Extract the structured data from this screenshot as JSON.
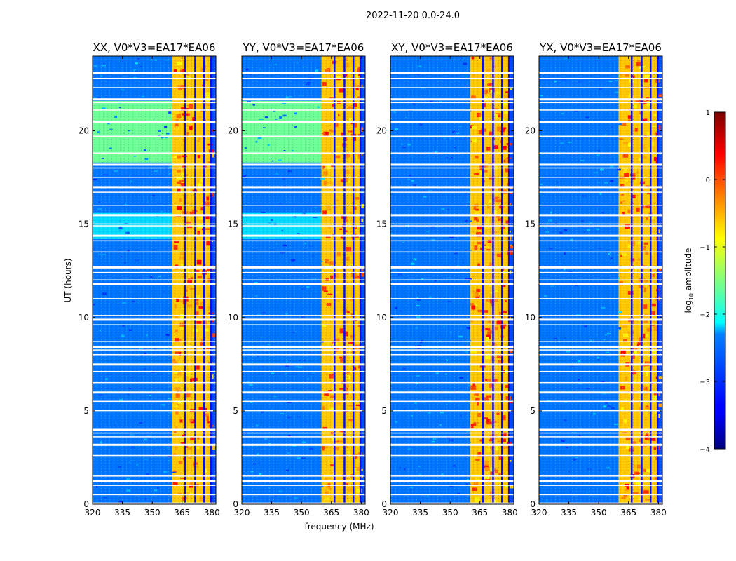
{
  "chart_data": {
    "type": "heatmap",
    "suptitle": "2022-11-20 0.0-24.0",
    "xlabel": "frequency (MHz)",
    "ylabel": "UT (hours)",
    "xlim": [
      320,
      382
    ],
    "ylim": [
      0,
      24
    ],
    "xticks": [
      320,
      335,
      350,
      365,
      380
    ],
    "yticks": [
      0,
      5,
      10,
      15,
      20
    ],
    "colormap": "jet",
    "colorbar": {
      "label": "log",
      "label_sub": "10",
      "label_rest": " amplitude",
      "range": [
        -4,
        1
      ],
      "ticks": [
        1,
        0,
        -1,
        -2,
        -3,
        -4
      ],
      "tick_labels": [
        "1",
        "0",
        "−1",
        "−2",
        "−3",
        "−4"
      ]
    },
    "panels": [
      {
        "title": "XX, V0*V3=EA17*EA06",
        "bright_band": true
      },
      {
        "title": "YY, V0*V3=EA17*EA06",
        "bright_band": true
      },
      {
        "title": "XY, V0*V3=EA17*EA06",
        "bright_band": false
      },
      {
        "title": "YX, V0*V3=EA17*EA06",
        "bright_band": false
      }
    ],
    "band_levels": [
      {
        "f_start": 320,
        "f_end": 360,
        "t_start": 0.0,
        "t_end": 24.0,
        "level": -2.8
      },
      {
        "f_start": 360,
        "f_end": 379.5,
        "t_start": 0.0,
        "t_end": 24.0,
        "level": -0.6
      },
      {
        "f_start": 320,
        "f_end": 360,
        "t_start": 18.3,
        "t_end": 21.6,
        "level": -1.6,
        "panels": [
          "XX",
          "YY"
        ]
      },
      {
        "f_start": 320,
        "f_end": 360,
        "t_start": 14.2,
        "t_end": 15.6,
        "level": -2.3,
        "panels": [
          "XX",
          "YY"
        ]
      }
    ],
    "flagged_times": [
      0.05,
      0.5,
      1.0,
      1.25,
      1.5,
      2.6,
      3.2,
      3.6,
      3.8,
      4.0,
      5.0,
      5.5,
      6.0,
      6.5,
      7.1,
      7.5,
      8.0,
      8.25,
      8.45,
      8.7,
      9.6,
      9.9,
      10.1,
      11.0,
      11.8,
      12.0,
      12.4,
      12.7,
      13.5,
      14.1,
      14.4,
      14.9,
      15.0,
      15.5,
      16.0,
      16.7,
      17.0,
      17.5,
      18.0,
      18.2,
      18.8,
      19.7,
      20.5,
      21.1,
      21.5,
      21.7,
      22.3,
      22.8,
      23.1
    ],
    "flagged_freqs": [
      366.5,
      371.5,
      376.0,
      379.5
    ]
  }
}
